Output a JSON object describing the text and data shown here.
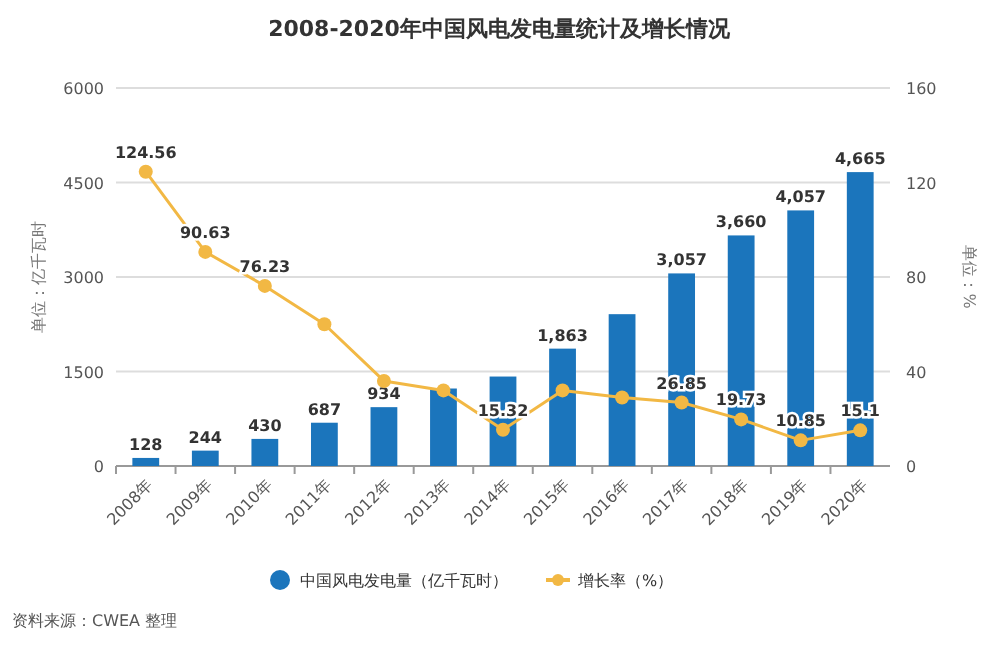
{
  "chart_data": {
    "type": "bar",
    "title": "2008-2020年中国风电发电量统计及增长情况",
    "categories": [
      "2008年",
      "2009年",
      "2010年",
      "2011年",
      "2012年",
      "2013年",
      "2014年",
      "2015年",
      "2016年",
      "2017年",
      "2018年",
      "2019年",
      "2020年"
    ],
    "series": [
      {
        "name": "中国风电发电量（亿千瓦时）",
        "color": "#1b75bc",
        "values": [
          128,
          244,
          430,
          687,
          934,
          1230,
          1420,
          1863,
          2410,
          3057,
          3660,
          4057,
          4665
        ],
        "value_labels": [
          "128",
          "244",
          "430",
          "687",
          "934",
          null,
          null,
          "1,863",
          null,
          "3,057",
          "3,660",
          "4,057",
          "4,665"
        ]
      },
      {
        "name": "增长率（%）",
        "type": "line",
        "axis": "y2",
        "marker": "circle",
        "color": "#f2b844",
        "values": [
          124.56,
          90.63,
          76.23,
          60,
          36,
          32,
          15.32,
          32,
          29,
          26.85,
          19.73,
          10.85,
          15.1
        ],
        "value_labels": [
          "124.56",
          "90.63",
          "76.23",
          null,
          null,
          null,
          "15.32",
          null,
          null,
          "26.85",
          "19.73",
          "10.85",
          "15.1"
        ]
      }
    ],
    "ylim": [
      0,
      6000
    ],
    "yticks": [
      0,
      1500,
      3000,
      4500,
      6000
    ],
    "y2lim": [
      0,
      160
    ],
    "y2ticks": [
      0,
      40,
      80,
      120,
      160
    ],
    "ylabel": "单位：亿千瓦时",
    "y2label": "单位：%",
    "grid": "y",
    "legend": "bottom",
    "annotations": [
      "资料来源：CWEA 整理"
    ]
  }
}
